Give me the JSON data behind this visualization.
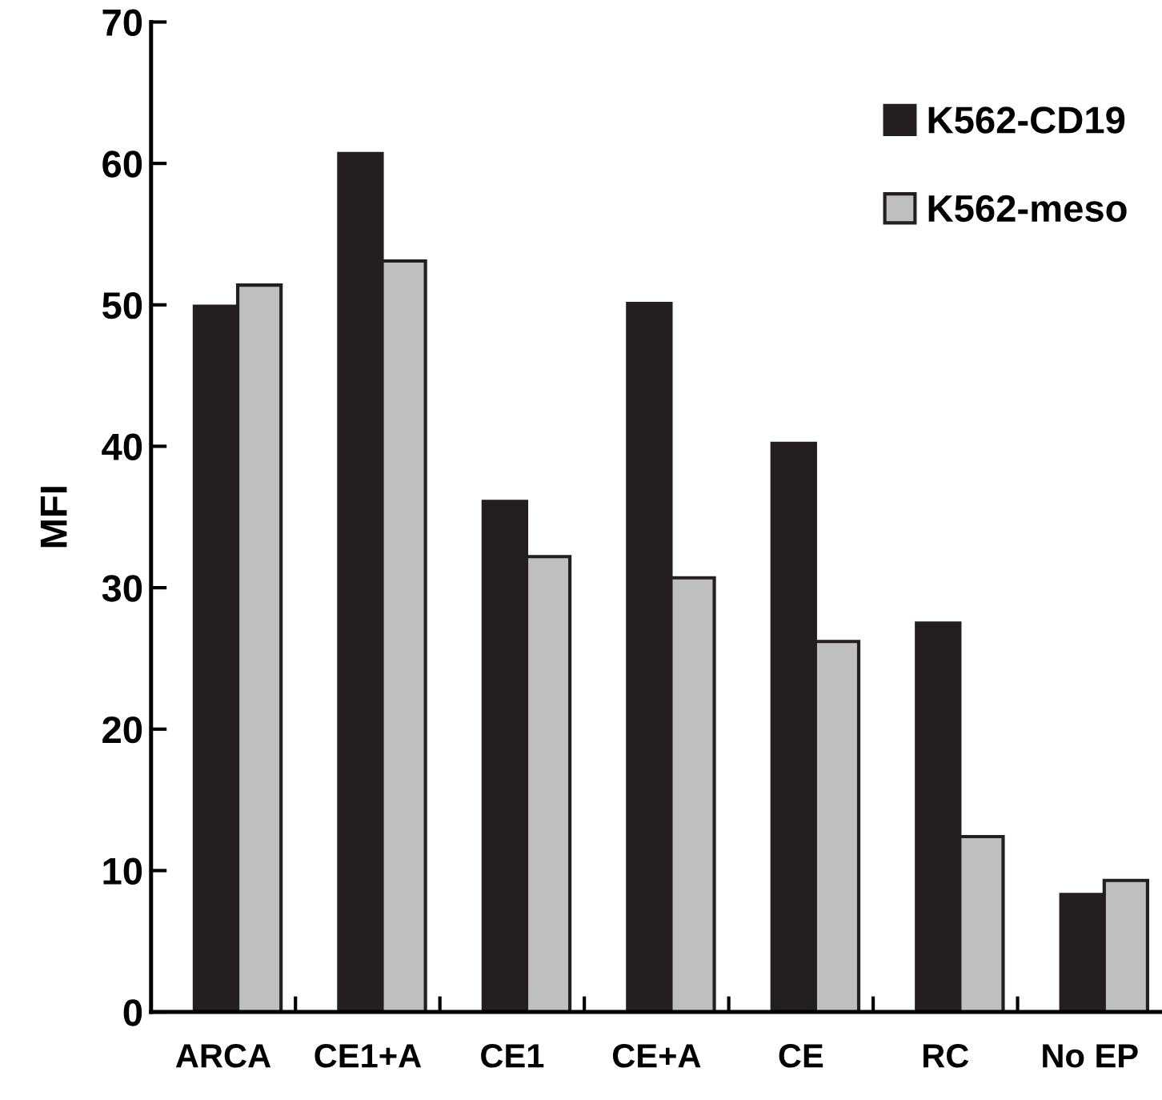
{
  "chart_data": {
    "type": "bar",
    "ylabel": "MFI",
    "categories": [
      "ARCA",
      "CE1+A",
      "CE1",
      "CE+A",
      "CE",
      "RC",
      "No EP"
    ],
    "series": [
      {
        "name": "K562-CD19",
        "color": "#231f20",
        "values": [
          49.9,
          60.7,
          36.1,
          50.1,
          40.2,
          27.5,
          8.3
        ]
      },
      {
        "name": "K562-meso",
        "color": "#c0bfc0",
        "values": [
          51.4,
          53.1,
          32.2,
          30.7,
          26.2,
          12.4,
          9.3
        ]
      }
    ],
    "ylim": [
      0,
      70
    ],
    "yticks": [
      0,
      10,
      20,
      30,
      40,
      50,
      60,
      70
    ],
    "grid": false,
    "legend": "top right"
  }
}
